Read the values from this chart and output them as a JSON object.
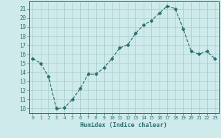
{
  "x": [
    0,
    1,
    2,
    3,
    4,
    5,
    6,
    7,
    8,
    9,
    10,
    11,
    12,
    13,
    14,
    15,
    16,
    17,
    18,
    19,
    20,
    21,
    22,
    23
  ],
  "y": [
    15.5,
    15.0,
    13.5,
    10.0,
    10.1,
    11.0,
    12.2,
    13.8,
    13.8,
    14.5,
    15.5,
    16.7,
    17.0,
    18.3,
    19.2,
    19.7,
    20.5,
    21.3,
    21.0,
    18.8,
    16.3,
    16.0,
    16.3,
    15.5
  ],
  "line_color": "#2d6e6e",
  "marker": "D",
  "marker_size": 2.5,
  "bg_color": "#ceeaea",
  "grid_color": "#aacfcf",
  "xlabel": "Humidex (Indice chaleur)",
  "ylabel_ticks": [
    10,
    11,
    12,
    13,
    14,
    15,
    16,
    17,
    18,
    19,
    20,
    21
  ],
  "ylim": [
    9.5,
    21.8
  ],
  "xlim": [
    -0.5,
    23.5
  ]
}
